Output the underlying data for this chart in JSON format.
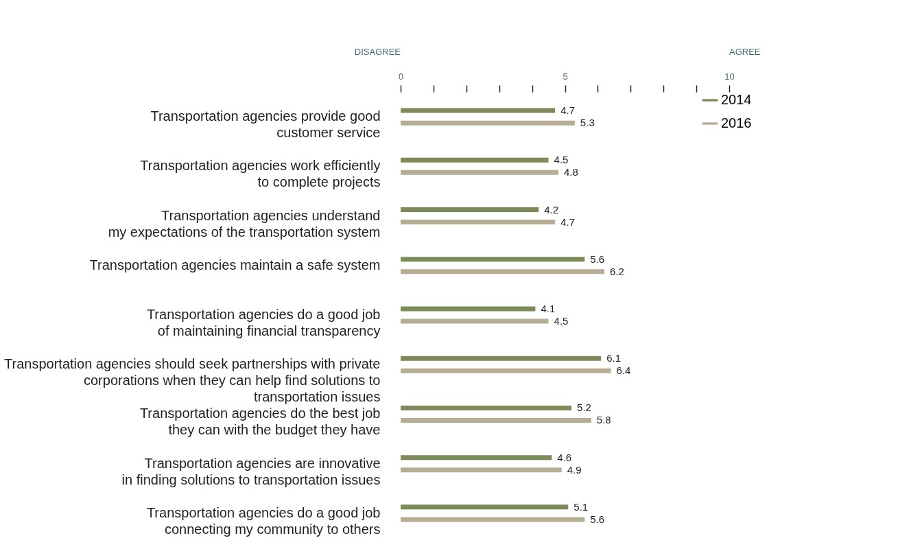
{
  "chart_data": {
    "type": "bar",
    "orientation": "horizontal",
    "categories": [
      "Transportation agencies provide good\ncustomer service",
      "Transportation agencies work efficiently\nto complete projects",
      "Transportation agencies understand\nmy expectations of the transportation system",
      "Transportation agencies maintain a safe system",
      "Transportation agencies do a good job\nof maintaining financial transparency",
      "Transportation agencies should seek partnerships with private\ncorporations when they can help find solutions to\ntransportation issues",
      "Transportation agencies do the best job\nthey can with the budget they have",
      "Transportation agencies are innovative\nin finding solutions to transportation issues",
      "Transportation agencies do a good job\nconnecting my community to others"
    ],
    "series": [
      {
        "name": "2014",
        "color": "#7d8a5a",
        "values": [
          4.7,
          4.5,
          4.2,
          5.6,
          4.1,
          6.1,
          5.2,
          4.6,
          5.1
        ]
      },
      {
        "name": "2016",
        "color": "#b6ad94",
        "values": [
          5.3,
          4.8,
          4.7,
          6.2,
          4.5,
          6.4,
          5.8,
          4.9,
          5.6
        ]
      }
    ],
    "xlim": [
      0,
      10
    ],
    "xticks": [
      0,
      {
        "value": 1,
        "label": null
      },
      {
        "value": 2,
        "label": null
      },
      {
        "value": 3,
        "label": null
      },
      {
        "value": 4,
        "label": null
      },
      5,
      {
        "value": 6,
        "label": null
      },
      {
        "value": 7,
        "label": null
      },
      {
        "value": 8,
        "label": null
      },
      {
        "value": 9,
        "label": null
      },
      10
    ],
    "annotations": [
      "DISAGREE",
      "AGREE"
    ],
    "data_labels": true,
    "grid": false,
    "legend": "top right"
  }
}
